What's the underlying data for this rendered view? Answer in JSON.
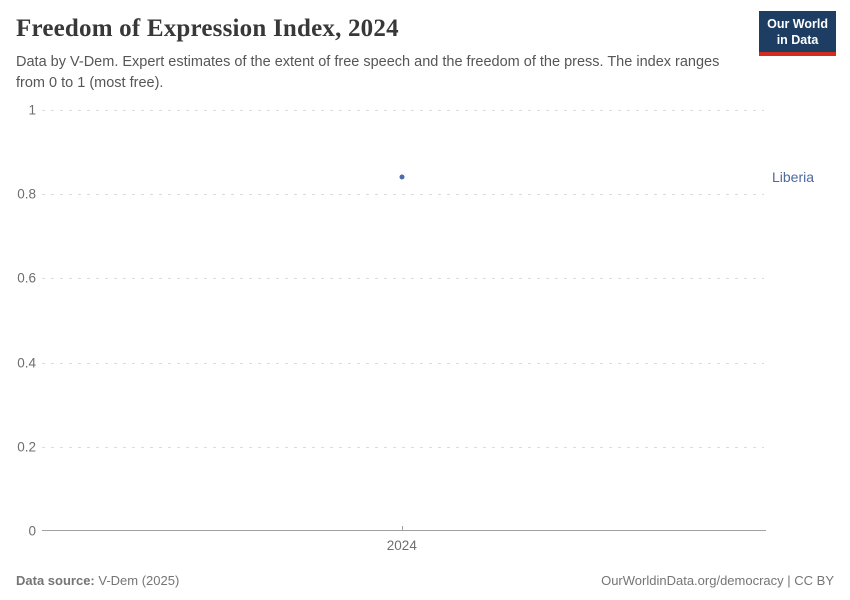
{
  "header": {
    "title": "Freedom of Expression Index, 2024",
    "subtitle": "Data by V-Dem. Expert estimates of the extent of free speech and the freedom of the press. The index ranges from 0 to 1 (most free).",
    "logo": {
      "line1": "Our World",
      "line2": "in Data"
    }
  },
  "colors": {
    "series_blue": "#4c6ba8",
    "series_label_blue": "#4c6a9c",
    "logo_navy": "#1d3d63",
    "logo_red": "#d42b21",
    "gridline_gray": "#dcdcdc",
    "axis_gray": "#a1a1a1",
    "title_gray": "#383838",
    "text_gray": "#565656",
    "tick_label_gray": "#6e6e6e"
  },
  "chart_data": {
    "type": "scatter",
    "title": "Freedom of Expression Index, 2024",
    "subtitle": "Data by V-Dem. Expert estimates of the extent of free speech and the freedom of the press. The index ranges from 0 to 1 (most free).",
    "categories": [
      "2024"
    ],
    "series": [
      {
        "name": "Liberia",
        "values": [
          0.84
        ],
        "color": "#4c6ba8"
      }
    ],
    "xlabel": "",
    "ylabel": "",
    "ylim": [
      0,
      1
    ],
    "ytick_labels": [
      "1",
      "0.8",
      "0.6",
      "0.4",
      "0.2",
      "0"
    ],
    "xtick_labels": [
      "2024"
    ],
    "grid": "horizontal-dashed",
    "legend_position": "right-of-point"
  },
  "footer": {
    "source_label": "Data source:",
    "source_value": " V-Dem (2025)",
    "credit_link": "OurWorldinData.org/democracy",
    "credit_license": " | CC BY"
  }
}
